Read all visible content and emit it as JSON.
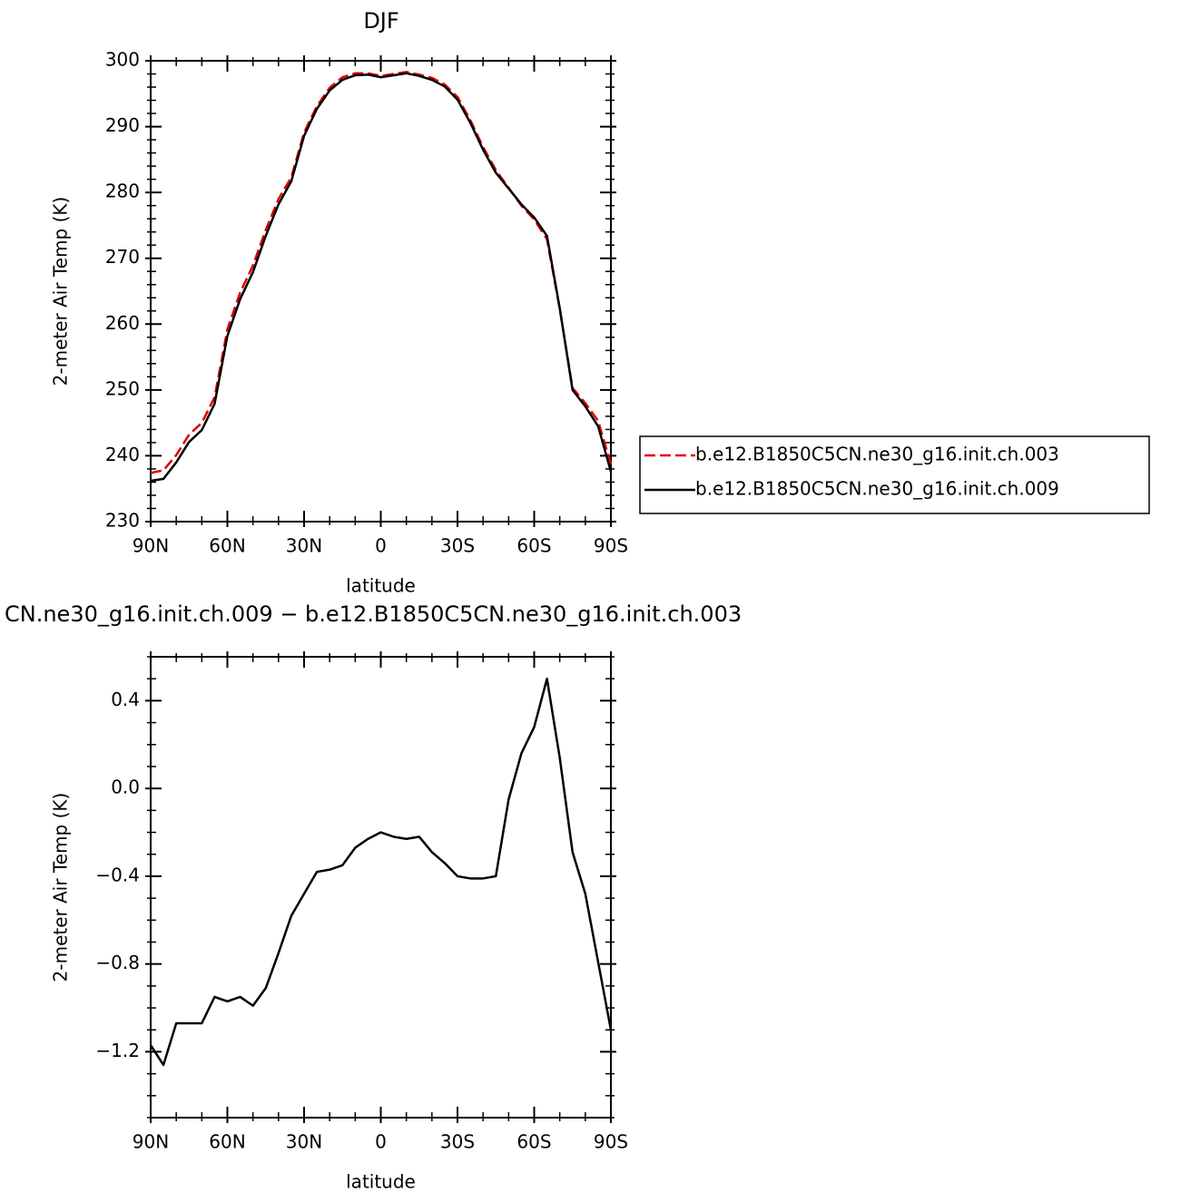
{
  "chart_data": [
    {
      "type": "line",
      "title": "DJF",
      "xlabel": "latitude",
      "ylabel": "2-meter Air Temp (K)",
      "x": [
        90,
        85,
        80,
        75,
        70,
        65,
        60,
        55,
        50,
        45,
        40,
        35,
        30,
        25,
        20,
        15,
        10,
        5,
        0,
        -5,
        -10,
        -15,
        -20,
        -25,
        -30,
        -35,
        -40,
        -45,
        -50,
        -55,
        -60,
        -65,
        -70,
        -75,
        -80,
        -85,
        -90
      ],
      "xlim": [
        90,
        -90
      ],
      "xticks": [
        {
          "value": 90,
          "label": "90N"
        },
        {
          "value": 60,
          "label": "60N"
        },
        {
          "value": 30,
          "label": "30N"
        },
        0,
        {
          "value": -30,
          "label": "30S"
        },
        {
          "value": -60,
          "label": "60S"
        },
        {
          "value": -90,
          "label": "90S"
        }
      ],
      "ylim": [
        230,
        300
      ],
      "yticks": [
        230,
        240,
        250,
        260,
        270,
        280,
        290,
        300
      ],
      "series": [
        {
          "name": "b.e12.B1850C5CN.ne30_g16.init.ch.003",
          "color": "#e00000",
          "dash": true,
          "values": [
            237.4,
            237.8,
            240.1,
            243.2,
            245.0,
            248.9,
            259.2,
            264.8,
            268.9,
            274.3,
            279.0,
            282.3,
            289.1,
            293.1,
            295.9,
            297.5,
            298.1,
            298.1,
            297.7,
            298.0,
            298.3,
            297.9,
            297.4,
            296.4,
            294.5,
            291.0,
            286.9,
            283.4,
            280.7,
            278.0,
            275.9,
            272.9,
            262.3,
            250.3,
            248.0,
            245.3,
            238.7
          ]
        },
        {
          "name": "b.e12.B1850C5CN.ne30_g16.init.ch.009",
          "color": "#000000",
          "dash": false,
          "values": [
            236.2,
            236.5,
            239.0,
            242.1,
            243.9,
            247.9,
            258.2,
            263.8,
            267.9,
            273.4,
            278.2,
            281.7,
            288.6,
            292.7,
            295.5,
            297.1,
            297.8,
            297.9,
            297.5,
            297.8,
            298.1,
            297.7,
            297.1,
            296.1,
            294.1,
            290.6,
            286.5,
            283.0,
            280.6,
            278.2,
            276.2,
            273.4,
            262.4,
            250.0,
            247.5,
            244.5,
            237.6
          ]
        }
      ]
    },
    {
      "type": "line",
      "title": "CN.ne30_g16.init.ch.009 − b.e12.B1850C5CN.ne30_g16.init.ch.003",
      "xlabel": "latitude",
      "ylabel": "2-meter Air Temp (K)",
      "x": [
        90,
        85,
        80,
        75,
        70,
        65,
        60,
        55,
        50,
        45,
        40,
        35,
        30,
        25,
        20,
        15,
        10,
        5,
        0,
        -5,
        -10,
        -15,
        -20,
        -25,
        -30,
        -35,
        -40,
        -45,
        -50,
        -55,
        -60,
        -65,
        -70,
        -75,
        -80,
        -85,
        -90
      ],
      "xlim": [
        90,
        -90
      ],
      "xticks": [
        {
          "value": 90,
          "label": "90N"
        },
        {
          "value": 60,
          "label": "60N"
        },
        {
          "value": 30,
          "label": "30N"
        },
        0,
        {
          "value": -30,
          "label": "30S"
        },
        {
          "value": -60,
          "label": "60S"
        },
        {
          "value": -90,
          "label": "90S"
        }
      ],
      "ylim": [
        -1.5,
        0.6
      ],
      "yticks": [
        {
          "value": -1.2,
          "label": "−1.2"
        },
        {
          "value": -0.8,
          "label": "−0.8"
        },
        {
          "value": -0.4,
          "label": "−0.4"
        },
        {
          "value": 0,
          "label": "0.0"
        },
        {
          "value": 0.4,
          "label": "0.4"
        }
      ],
      "series": [
        {
          "color": "#000000",
          "dash": false,
          "values": [
            -1.17,
            -1.26,
            -1.07,
            -1.07,
            -1.07,
            -0.95,
            -0.97,
            -0.95,
            -0.99,
            -0.91,
            -0.75,
            -0.58,
            -0.48,
            -0.38,
            -0.37,
            -0.35,
            -0.27,
            -0.23,
            -0.2,
            -0.22,
            -0.23,
            -0.22,
            -0.29,
            -0.34,
            -0.4,
            -0.41,
            -0.41,
            -0.4,
            -0.05,
            0.16,
            0.28,
            0.5,
            0.14,
            -0.29,
            -0.48,
            -0.79,
            -1.1
          ]
        }
      ]
    }
  ]
}
